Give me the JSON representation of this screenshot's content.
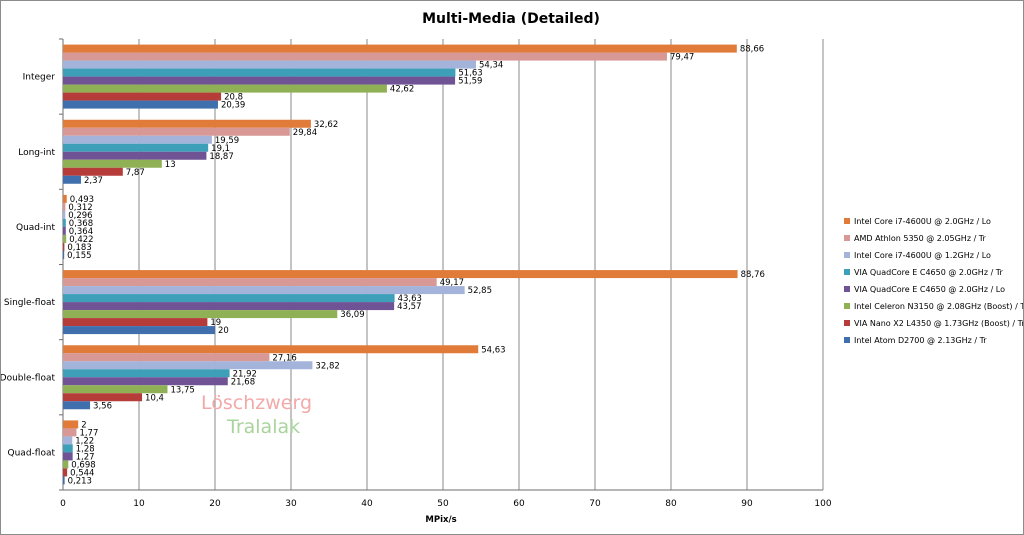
{
  "chart_data": {
    "type": "bar",
    "orientation": "horizontal",
    "title": "Multi-Media (Detailed)",
    "xlabel": "MPix/s",
    "ylabel": "",
    "xlim": [
      0,
      100
    ],
    "xticks": [
      0,
      10,
      20,
      30,
      40,
      50,
      60,
      70,
      80,
      90,
      100
    ],
    "grid": "vertical",
    "legend_position": "right",
    "categories": [
      "Integer",
      "Long-int",
      "Quad-int",
      "Single-float",
      "Double-float",
      "Quad-float"
    ],
    "series": [
      {
        "name": "Intel Core i7-4600U @ 2.0GHz / Lo",
        "color": "#e07b39",
        "values": [
          88.66,
          32.62,
          0.493,
          88.76,
          54.63,
          2
        ],
        "labels": [
          "88,66",
          "32,62",
          "0,493",
          "88,76",
          "54,63",
          "2"
        ]
      },
      {
        "name": "AMD Athlon 5350 @ 2.05GHz / Tr",
        "color": "#d89896",
        "values": [
          79.47,
          29.84,
          0.312,
          49.17,
          27.16,
          1.77
        ],
        "labels": [
          "79,47",
          "29,84",
          "0,312",
          "49,17",
          "27,16",
          "1,77"
        ]
      },
      {
        "name": "Intel Core i7-4600U @ 1.2GHz / Lo",
        "color": "#a3b3d9",
        "values": [
          54.34,
          19.59,
          0.296,
          52.85,
          32.82,
          1.22
        ],
        "labels": [
          "54,34",
          "19,59",
          "0,296",
          "52,85",
          "32,82",
          "1,22"
        ]
      },
      {
        "name": "VIA QuadCore E C4650 @ 2.0GHz / Tr",
        "color": "#3d9fb8",
        "values": [
          51.63,
          19.1,
          0.368,
          43.63,
          21.92,
          1.28
        ],
        "labels": [
          "51,63",
          "19,1",
          "0,368",
          "43,63",
          "21,92",
          "1,28"
        ]
      },
      {
        "name": "VIA QuadCore E C4650 @ 2.0GHz / Lo",
        "color": "#6f5394",
        "values": [
          51.59,
          18.87,
          0.364,
          43.57,
          21.68,
          1.27
        ],
        "labels": [
          "51,59",
          "18,87",
          "0,364",
          "43,57",
          "21,68",
          "1,27"
        ]
      },
      {
        "name": "Intel Celeron N3150 @ 2.08GHz (Boost) / Tr",
        "color": "#8fb055",
        "values": [
          42.62,
          13,
          0.422,
          36.09,
          13.75,
          0.698
        ],
        "labels": [
          "42,62",
          "13",
          "0,422",
          "36,09",
          "13,75",
          "0,698"
        ]
      },
      {
        "name": "VIA Nano X2 L4350 @ 1.73GHz (Boost) / Tr",
        "color": "#b63c3a",
        "values": [
          20.8,
          7.87,
          0.183,
          19,
          10.4,
          0.544
        ],
        "labels": [
          "20,8",
          "7,87",
          "0,183",
          "19",
          "10,4",
          "0,544"
        ]
      },
      {
        "name": "Intel Atom D2700 @ 2.13GHz / Tr",
        "color": "#3f6fad",
        "values": [
          20.39,
          2.37,
          0.155,
          20,
          3.56,
          0.213
        ],
        "labels": [
          "20,39",
          "2,37",
          "0,155",
          "20",
          "3,56",
          "0,213"
        ]
      }
    ],
    "watermark": {
      "line1": "Löschzwerg",
      "line2": "Tralalak",
      "color1": "#f2a9a9",
      "color2": "#a9d49b"
    }
  }
}
